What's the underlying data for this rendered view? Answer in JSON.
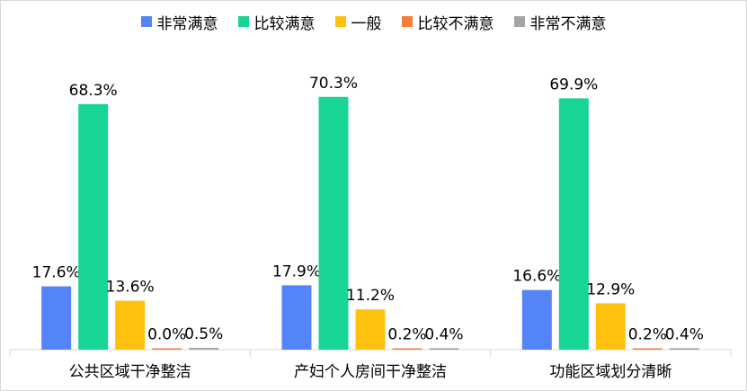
{
  "chart_data": {
    "type": "bar",
    "title": "",
    "xlabel": "",
    "ylabel": "",
    "ylim": [
      0,
      80
    ],
    "grid": false,
    "legend_position": "top",
    "categories": [
      "公共区域干净整洁",
      "产妇个人房间干净整洁",
      "功能区域划分清晰"
    ],
    "series": [
      {
        "name": "非常满意",
        "color": "#5583F8",
        "values": [
          17.6,
          17.9,
          16.6
        ],
        "labels": [
          "17.6%",
          "17.9%",
          "16.6%"
        ]
      },
      {
        "name": "比较满意",
        "color": "#16D595",
        "values": [
          68.3,
          70.3,
          69.9
        ],
        "labels": [
          "68.3%",
          "70.3%",
          "69.9%"
        ]
      },
      {
        "name": "一般",
        "color": "#FEC20E",
        "values": [
          13.6,
          11.2,
          12.9
        ],
        "labels": [
          "13.6%",
          "11.2%",
          "12.9%"
        ]
      },
      {
        "name": "比较不满意",
        "color": "#F47E3C",
        "values": [
          0.0,
          0.2,
          0.2
        ],
        "labels": [
          "0.0%",
          "0.2%",
          "0.2%"
        ]
      },
      {
        "name": "非常不满意",
        "color": "#A5A5A5",
        "values": [
          0.5,
          0.4,
          0.4
        ],
        "labels": [
          "0.5%",
          "0.4%",
          "0.4%"
        ]
      }
    ]
  }
}
